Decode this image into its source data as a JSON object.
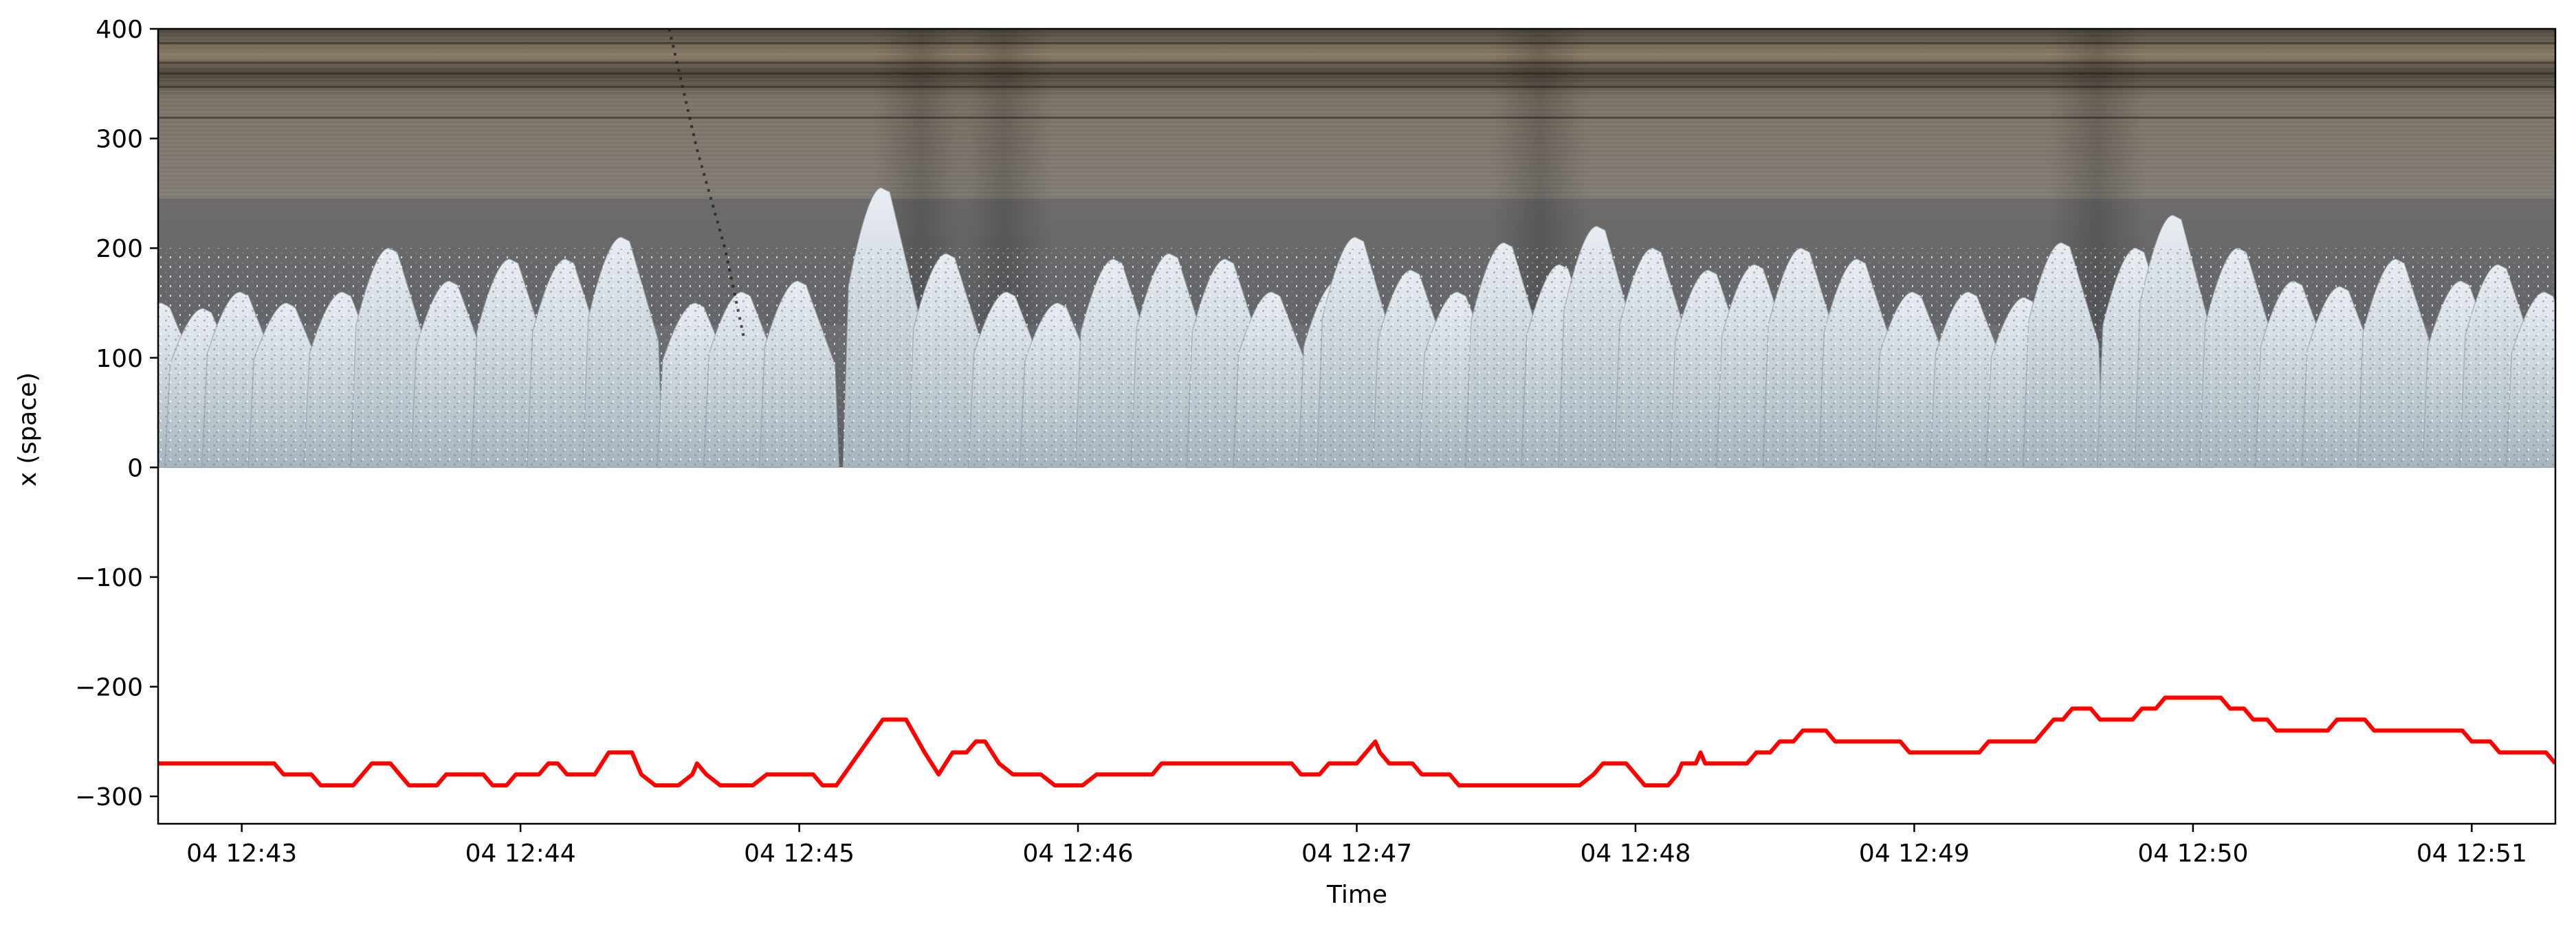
{
  "chart_data": {
    "type": "line",
    "title": "",
    "xlabel": "Time",
    "ylabel": "x (space)",
    "xlim": [
      "04 12:42:42",
      "04 12:51:18"
    ],
    "ylim": [
      -325,
      400
    ],
    "xticks": [
      {
        "time": "04 12:43:00",
        "label": "04 12:43"
      },
      {
        "time": "04 12:44:00",
        "label": "04 12:44"
      },
      {
        "time": "04 12:45:00",
        "label": "04 12:45"
      },
      {
        "time": "04 12:46:00",
        "label": "04 12:46"
      },
      {
        "time": "04 12:47:00",
        "label": "04 12:47"
      },
      {
        "time": "04 12:48:00",
        "label": "04 12:48"
      },
      {
        "time": "04 12:49:00",
        "label": "04 12:49"
      },
      {
        "time": "04 12:50:00",
        "label": "04 12:50"
      },
      {
        "time": "04 12:51:00",
        "label": "04 12:51"
      }
    ],
    "yticks": [
      {
        "value": 400,
        "label": "400"
      },
      {
        "value": 300,
        "label": "300"
      },
      {
        "value": 200,
        "label": "200"
      },
      {
        "value": 100,
        "label": "100"
      },
      {
        "value": 0,
        "label": "0"
      },
      {
        "value": -100,
        "label": "−100"
      },
      {
        "value": -200,
        "label": "−200"
      },
      {
        "value": -300,
        "label": "−300"
      }
    ],
    "grid": false,
    "legend": "none",
    "image_background": {
      "description_type": "space-time stack (image)",
      "x_range": [
        "04 12:42:42",
        "04 12:51:18"
      ],
      "y_range": [
        0,
        400
      ],
      "colors": {
        "top_band": "#6f6559",
        "middle_band": "#7c7873",
        "gray_band": "#5f5f62",
        "foam": "#dde3e8",
        "foam_shadow": "#8e9aa4"
      }
    },
    "series": [
      {
        "color": "#ff0000",
        "points": [
          [
            "04 12:42:42",
            -270
          ],
          [
            "04 12:43:07",
            -270
          ],
          [
            "04 12:43:09",
            -280
          ],
          [
            "04 12:43:15",
            -280
          ],
          [
            "04 12:43:17",
            -290
          ],
          [
            "04 12:43:24",
            -290
          ],
          [
            "04 12:43:26",
            -280
          ],
          [
            "04 12:43:28",
            -270
          ],
          [
            "04 12:43:32",
            -270
          ],
          [
            "04 12:43:34",
            -280
          ],
          [
            "04 12:43:36",
            -290
          ],
          [
            "04 12:43:42",
            -290
          ],
          [
            "04 12:43:44",
            -280
          ],
          [
            "04 12:43:52",
            -280
          ],
          [
            "04 12:43:54",
            -290
          ],
          [
            "04 12:43:57",
            -290
          ],
          [
            "04 12:43:59",
            -280
          ],
          [
            "04 12:44:04",
            -280
          ],
          [
            "04 12:44:06",
            -270
          ],
          [
            "04 12:44:08",
            -270
          ],
          [
            "04 12:44:10",
            -280
          ],
          [
            "04 12:44:16",
            -280
          ],
          [
            "04 12:44:19",
            -260
          ],
          [
            "04 12:44:24",
            -260
          ],
          [
            "04 12:44:26",
            -280
          ],
          [
            "04 12:44:29",
            -290
          ],
          [
            "04 12:44:34",
            -290
          ],
          [
            "04 12:44:37",
            -280
          ],
          [
            "04 12:44:38",
            -270
          ],
          [
            "04 12:44:40",
            -280
          ],
          [
            "04 12:44:43",
            -290
          ],
          [
            "04 12:44:50",
            -290
          ],
          [
            "04 12:44:53",
            -280
          ],
          [
            "04 12:45:03",
            -280
          ],
          [
            "04 12:45:05",
            -290
          ],
          [
            "04 12:45:08",
            -290
          ],
          [
            "04 12:45:13",
            -260
          ],
          [
            "04 12:45:18",
            -230
          ],
          [
            "04 12:45:23",
            -230
          ],
          [
            "04 12:45:27",
            -260
          ],
          [
            "04 12:45:30",
            -280
          ],
          [
            "04 12:45:33",
            -260
          ],
          [
            "04 12:45:36",
            -260
          ],
          [
            "04 12:45:38",
            -250
          ],
          [
            "04 12:45:40",
            -250
          ],
          [
            "04 12:45:43",
            -270
          ],
          [
            "04 12:45:46",
            -280
          ],
          [
            "04 12:45:52",
            -280
          ],
          [
            "04 12:45:55",
            -290
          ],
          [
            "04 12:46:01",
            -290
          ],
          [
            "04 12:46:04",
            -280
          ],
          [
            "04 12:46:16",
            -280
          ],
          [
            "04 12:46:18",
            -270
          ],
          [
            "04 12:46:46",
            -270
          ],
          [
            "04 12:46:48",
            -280
          ],
          [
            "04 12:46:52",
            -280
          ],
          [
            "04 12:46:54",
            -270
          ],
          [
            "04 12:47:00",
            -270
          ],
          [
            "04 12:47:02",
            -260
          ],
          [
            "04 12:47:04",
            -250
          ],
          [
            "04 12:47:05",
            -260
          ],
          [
            "04 12:47:07",
            -270
          ],
          [
            "04 12:47:12",
            -270
          ],
          [
            "04 12:47:14",
            -280
          ],
          [
            "04 12:47:20",
            -280
          ],
          [
            "04 12:47:22",
            -290
          ],
          [
            "04 12:47:48",
            -290
          ],
          [
            "04 12:47:51",
            -280
          ],
          [
            "04 12:47:53",
            -270
          ],
          [
            "04 12:47:58",
            -270
          ],
          [
            "04 12:48:00",
            -280
          ],
          [
            "04 12:48:02",
            -290
          ],
          [
            "04 12:48:07",
            -290
          ],
          [
            "04 12:48:09",
            -280
          ],
          [
            "04 12:48:10",
            -270
          ],
          [
            "04 12:48:13",
            -270
          ],
          [
            "04 12:48:14",
            -260
          ],
          [
            "04 12:48:15",
            -270
          ],
          [
            "04 12:48:24",
            -270
          ],
          [
            "04 12:48:26",
            -260
          ],
          [
            "04 12:48:29",
            -260
          ],
          [
            "04 12:48:31",
            -250
          ],
          [
            "04 12:48:34",
            -250
          ],
          [
            "04 12:48:36",
            -240
          ],
          [
            "04 12:48:41",
            -240
          ],
          [
            "04 12:48:43",
            -250
          ],
          [
            "04 12:48:57",
            -250
          ],
          [
            "04 12:48:59",
            -260
          ],
          [
            "04 12:49:14",
            -260
          ],
          [
            "04 12:49:16",
            -250
          ],
          [
            "04 12:49:26",
            -250
          ],
          [
            "04 12:49:28",
            -240
          ],
          [
            "04 12:49:30",
            -230
          ],
          [
            "04 12:49:32",
            -230
          ],
          [
            "04 12:49:34",
            -220
          ],
          [
            "04 12:49:38",
            -220
          ],
          [
            "04 12:49:40",
            -230
          ],
          [
            "04 12:49:47",
            -230
          ],
          [
            "04 12:49:49",
            -220
          ],
          [
            "04 12:49:52",
            -220
          ],
          [
            "04 12:49:54",
            -210
          ],
          [
            "04 12:50:06",
            -210
          ],
          [
            "04 12:50:08",
            -220
          ],
          [
            "04 12:50:11",
            -220
          ],
          [
            "04 12:50:13",
            -230
          ],
          [
            "04 12:50:16",
            -230
          ],
          [
            "04 12:50:18",
            -240
          ],
          [
            "04 12:50:29",
            -240
          ],
          [
            "04 12:50:31",
            -230
          ],
          [
            "04 12:50:37",
            -230
          ],
          [
            "04 12:50:39",
            -240
          ],
          [
            "04 12:50:58",
            -240
          ],
          [
            "04 12:51:00",
            -250
          ],
          [
            "04 12:51:04",
            -250
          ],
          [
            "04 12:51:06",
            -260
          ],
          [
            "04 12:51:16",
            -260
          ],
          [
            "04 12:51:18",
            -270
          ]
        ]
      }
    ]
  }
}
